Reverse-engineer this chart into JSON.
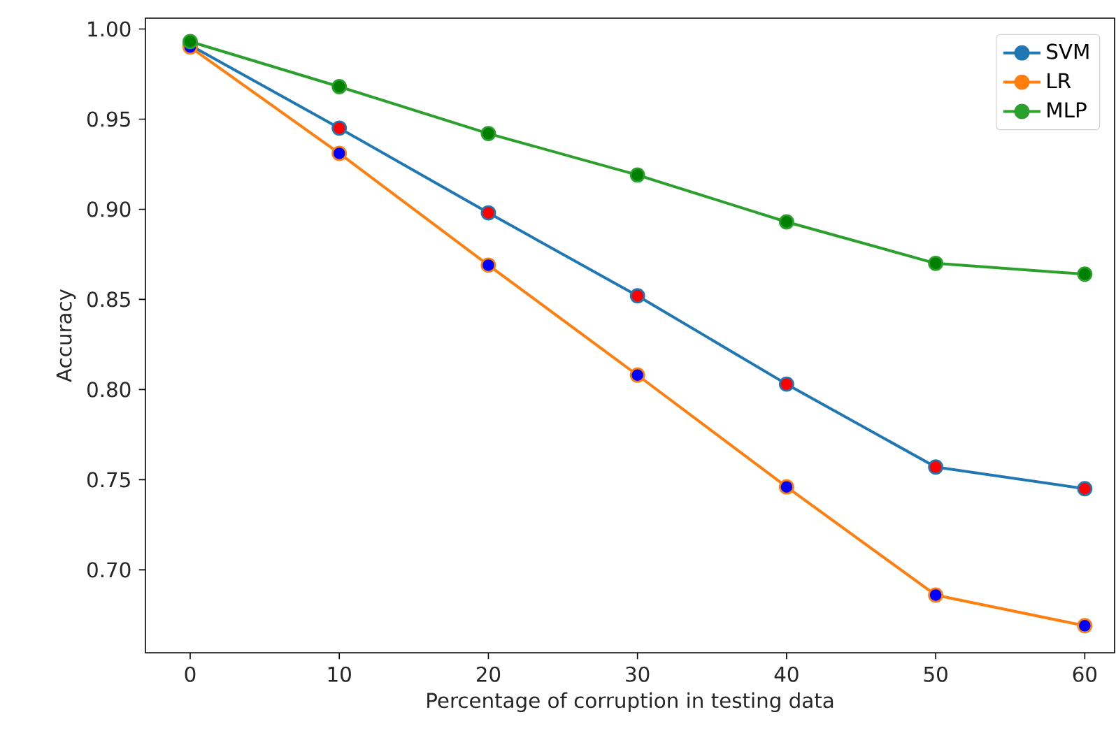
{
  "chart_data": {
    "type": "line",
    "xlabel": "Percentage of corruption in testing data",
    "ylabel": "Accuracy",
    "x": [
      0,
      10,
      20,
      30,
      40,
      50,
      60
    ],
    "series": [
      {
        "name": "SVM",
        "color": "#1f77b4",
        "colors": [
          "#ff0000",
          "#ff0000",
          "#ff0000",
          "#ff0000",
          "#ff0000",
          "#ff0000",
          "#ff0000"
        ],
        "values": [
          0.991,
          0.945,
          0.898,
          0.852,
          0.803,
          0.757,
          0.745
        ]
      },
      {
        "name": "LR",
        "color": "#ff7f0e",
        "colors": [
          "#0000ff",
          "#0000ff",
          "#0000ff",
          "#0000ff",
          "#0000ff",
          "#0000ff",
          "#0000ff"
        ],
        "values": [
          0.99,
          0.931,
          0.869,
          0.808,
          0.746,
          0.686,
          0.669
        ]
      },
      {
        "name": "MLP",
        "color": "#2ca02c",
        "colors": [
          "#008000",
          "#008000",
          "#008000",
          "#008000",
          "#008000",
          "#008000",
          "#008000"
        ],
        "values": [
          0.993,
          0.968,
          0.942,
          0.919,
          0.893,
          0.87,
          0.864
        ]
      }
    ],
    "xlim": [
      -3,
      62
    ],
    "ylim": [
      0.654,
      1.006
    ],
    "xticks": [
      0,
      10,
      20,
      30,
      40,
      50,
      60
    ],
    "yticks": [
      {
        "value": 0.7,
        "label": "0.70"
      },
      {
        "value": 0.75,
        "label": "0.75"
      },
      {
        "value": 0.8,
        "label": "0.80"
      },
      {
        "value": 0.85,
        "label": "0.85"
      },
      {
        "value": 0.9,
        "label": "0.90"
      },
      {
        "value": 0.95,
        "label": "0.95"
      },
      {
        "value": 1.0,
        "label": "1.00"
      }
    ],
    "legend": "top right",
    "marker": "circle",
    "line_style": "solid",
    "grid": false
  }
}
